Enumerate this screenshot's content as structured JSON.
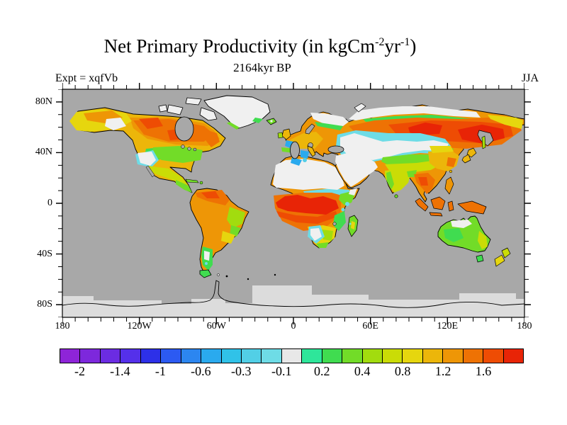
{
  "header": {
    "title_pre": "Net Primary Productivity (in kgCm",
    "title_sup1": "-2",
    "title_mid": "yr",
    "title_sup2": "-1",
    "title_post": ")",
    "subtitle": "2164kyr BP",
    "experiment_label": "Expt = xqfVb",
    "season_label": "JJA"
  },
  "axes": {
    "x_tick_labels": [
      "180",
      "120W",
      "60W",
      "0",
      "60E",
      "120E",
      "180"
    ],
    "y_tick_labels": [
      "80N",
      "40N",
      "0",
      "40S",
      "80S"
    ]
  },
  "colorbar": {
    "labels": [
      "-2",
      "-1.4",
      "-1",
      "-0.6",
      "-0.3",
      "-0.1",
      "0.2",
      "0.4",
      "0.8",
      "1.2",
      "1.6"
    ],
    "colors": [
      "#8e24d8",
      "#7d28dc",
      "#6b2ce2",
      "#5530ea",
      "#2d30e8",
      "#2c5af2",
      "#2c86f0",
      "#2aaaee",
      "#30c2e8",
      "#52cfe6",
      "#6edce6",
      "#e8e8e8",
      "#2ee69a",
      "#40dc50",
      "#72dc28",
      "#a2dc0e",
      "#cadc06",
      "#e6d60e",
      "#ecb60a",
      "#ee9606",
      "#ee7204",
      "#ee4c04",
      "#e82406"
    ]
  },
  "palette": {
    "ocean": "#a8a8a8",
    "ice": "#dcdcdc",
    "white": "#f0f0f0",
    "coast": "#000000",
    "text": "#000000"
  },
  "chart_data": {
    "type": "heatmap",
    "title": "Net Primary Productivity (in kgCm-2yr-1)",
    "subtitle": "2164kyr BP",
    "experiment": "Expt = xqfVb",
    "season": "JJA",
    "projection": "equirectangular global map, lon -180..180, lat -90..90",
    "xlim": [
      -180,
      180
    ],
    "ylim": [
      -90,
      90
    ],
    "x_ticks": [
      "180",
      "120W",
      "60W",
      "0",
      "60E",
      "120E",
      "180"
    ],
    "y_ticks": [
      "80N",
      "40N",
      "0",
      "40S",
      "80S"
    ],
    "colorbar": {
      "units": "kgC m-2 yr-1",
      "labeled_bin_edges": [
        -2,
        -1.4,
        -1,
        -0.6,
        -0.3,
        -0.1,
        0.2,
        0.4,
        0.8,
        1.2,
        1.6
      ],
      "n_cells": 23,
      "cell_colors": [
        "#8e24d8",
        "#7d28dc",
        "#6b2ce2",
        "#5530ea",
        "#2d30e8",
        "#2c5af2",
        "#2c86f0",
        "#2aaaee",
        "#30c2e8",
        "#52cfe6",
        "#6edce6",
        "#e8e8e8",
        "#2ee69a",
        "#40dc50",
        "#72dc28",
        "#a2dc0e",
        "#cadc06",
        "#e6d60e",
        "#ecb60a",
        "#ee9606",
        "#ee7204",
        "#ee4c04",
        "#e82406"
      ]
    },
    "regions": [
      {
        "name": "ocean",
        "value": "no data (gray)"
      },
      {
        "name": "Sahara and Arabian desert",
        "approx_npp": "-0.1 to 0.2 (white)"
      },
      {
        "name": "Sahel band across equatorial Africa",
        "approx_npp": "1.6 to 2.0 (dark red)"
      },
      {
        "name": "Congo basin",
        "approx_npp": "0.8 to 1.2 (orange)"
      },
      {
        "name": "East Africa rift",
        "approx_npp": "0.2 to 0.4 with -0.3 to -0.1 cyan fringes"
      },
      {
        "name": "Kalahari-Namib patch",
        "approx_npp": "-0.1 to 0.2 (white)"
      },
      {
        "name": "Madagascar",
        "approx_npp": "0.2 to 0.8"
      },
      {
        "name": "central Siberia",
        "approx_npp": "1.2 to 1.8 (orange-red maxima)"
      },
      {
        "name": "northern Siberian arctic coast",
        "approx_npp": "-0.1 to 0.2 (white)"
      },
      {
        "name": "central Asia deserts (Caspian to Gobi)",
        "approx_npp": "-0.1 to 0.2 (white) with -0.6 to -0.3 blue spots near Caspian"
      },
      {
        "name": "Tibet and Himalaya fringe",
        "approx_npp": "0.2 to 0.6 (green)"
      },
      {
        "name": "India",
        "approx_npp": "0.4 to 0.8"
      },
      {
        "name": "Southeast Asia / Indonesia / New Guinea",
        "approx_npp": "0.8 to 1.2 (orange)"
      },
      {
        "name": "boreal Canada",
        "approx_npp": "0.8 to 1.6 (orange with red patches)"
      },
      {
        "name": "central-eastern United States",
        "approx_npp": "0.4 to 0.8 (green)"
      },
      {
        "name": "southwest US desert",
        "approx_npp": "-0.1 to 0.2 (white)"
      },
      {
        "name": "Amazon / northern South America",
        "approx_npp": "0.8 to 1.4 (orange)"
      },
      {
        "name": "eastern Brazil",
        "approx_npp": "0.4 to 0.8 (green)"
      },
      {
        "name": "Patagonia",
        "approx_npp": "0.2 to 0.4 (teal) with white spots"
      },
      {
        "name": "Australia interior",
        "approx_npp": "0.2 to 0.6 (green), white patch in north"
      },
      {
        "name": "Greenland and Arctic islands",
        "approx_npp": "-0.1 to 0.2 (white, ice)"
      },
      {
        "name": "Antarctica / southern-ocean ice band",
        "approx_npp": "no data (light gray)"
      }
    ]
  }
}
